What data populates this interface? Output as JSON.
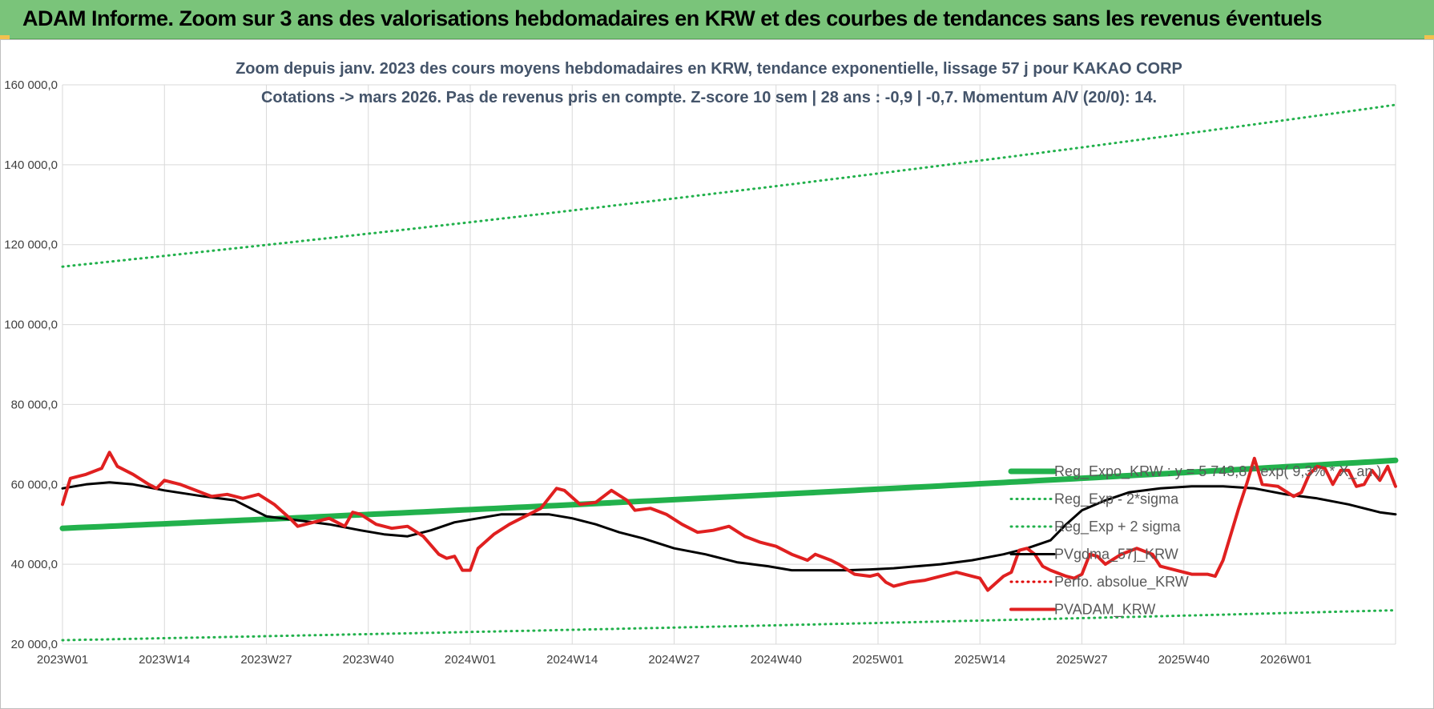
{
  "banner": {
    "title": "ADAM Informe. Zoom sur 3 ans des valorisations hebdomadaires en KRW et des courbes de tendances sans les revenus éventuels"
  },
  "chart_data": {
    "type": "line",
    "title_line1": "Zoom depuis janv. 2023 des cours moyens hebdomadaires en KRW, tendance exponentielle, lissage 57 j pour KAKAO CORP",
    "title_line2": "Cotations -> mars 2026. Pas de revenus pris en compte. Z-score 10 sem | 28 ans : -0,9 | -0,7. Momentum A/V (20/0): 14.",
    "ylim": [
      20000,
      160000
    ],
    "y_ticks": [
      {
        "value": 20000,
        "label": "20 000,0"
      },
      {
        "value": 40000,
        "label": "40 000,0"
      },
      {
        "value": 60000,
        "label": "60 000,0"
      },
      {
        "value": 80000,
        "label": "80 000,0"
      },
      {
        "value": 100000,
        "label": "100 000,0"
      },
      {
        "value": 120000,
        "label": "120 000,0"
      },
      {
        "value": 140000,
        "label": "140 000,0"
      },
      {
        "value": 160000,
        "label": "160 000,0"
      }
    ],
    "x_ticks": [
      {
        "index": 0,
        "label": "2023W01"
      },
      {
        "index": 13,
        "label": "2023W14"
      },
      {
        "index": 26,
        "label": "2023W27"
      },
      {
        "index": 39,
        "label": "2023W40"
      },
      {
        "index": 52,
        "label": "2024W01"
      },
      {
        "index": 65,
        "label": "2024W14"
      },
      {
        "index": 78,
        "label": "2024W27"
      },
      {
        "index": 91,
        "label": "2024W40"
      },
      {
        "index": 104,
        "label": "2025W01"
      },
      {
        "index": 117,
        "label": "2025W14"
      },
      {
        "index": 130,
        "label": "2025W27"
      },
      {
        "index": 143,
        "label": "2025W40"
      },
      {
        "index": 156,
        "label": "2026W01"
      }
    ],
    "x_count": 171,
    "grid": true,
    "legend_position": "bottom-right",
    "series": [
      {
        "name": "Reg_Expo_KRW : y = 5 743,8 * exp( 9,3% *  X_an )",
        "kind": "trend",
        "color": "#22b14c",
        "style": "solid",
        "width": 7,
        "endpoints": [
          [
            0,
            49000
          ],
          [
            170,
            66000
          ]
        ]
      },
      {
        "name": "Reg_Exp - 2*sigma",
        "kind": "trend",
        "color": "#22b14c",
        "style": "dotted",
        "width": 3,
        "endpoints": [
          [
            0,
            21000
          ],
          [
            170,
            28500
          ]
        ]
      },
      {
        "name": "Reg_Exp + 2 sigma",
        "kind": "trend",
        "color": "#22b14c",
        "style": "dotted",
        "width": 3,
        "endpoints": [
          [
            0,
            114500
          ],
          [
            170,
            155000
          ]
        ]
      },
      {
        "name": "PVgdma_57j_KRW",
        "kind": "line",
        "color": "#000000",
        "style": "solid",
        "width": 3,
        "points": [
          [
            0,
            59000
          ],
          [
            3,
            60000
          ],
          [
            6,
            60500
          ],
          [
            9,
            60000
          ],
          [
            13,
            58500
          ],
          [
            18,
            57000
          ],
          [
            22,
            56000
          ],
          [
            26,
            52000
          ],
          [
            30,
            51000
          ],
          [
            34,
            50000
          ],
          [
            38,
            48500
          ],
          [
            41,
            47500
          ],
          [
            44,
            47000
          ],
          [
            47,
            48500
          ],
          [
            50,
            50500
          ],
          [
            53,
            51500
          ],
          [
            56,
            52500
          ],
          [
            59,
            52500
          ],
          [
            62,
            52500
          ],
          [
            65,
            51500
          ],
          [
            68,
            50000
          ],
          [
            71,
            48000
          ],
          [
            74,
            46500
          ],
          [
            78,
            44000
          ],
          [
            82,
            42500
          ],
          [
            86,
            40500
          ],
          [
            90,
            39500
          ],
          [
            93,
            38500
          ],
          [
            97,
            38500
          ],
          [
            100,
            38500
          ],
          [
            103,
            38700
          ],
          [
            106,
            39000
          ],
          [
            109,
            39500
          ],
          [
            112,
            40000
          ],
          [
            116,
            41000
          ],
          [
            120,
            42500
          ],
          [
            123,
            44000
          ],
          [
            126,
            46000
          ],
          [
            128,
            50000
          ],
          [
            130,
            53500
          ],
          [
            133,
            56000
          ],
          [
            136,
            58000
          ],
          [
            140,
            59000
          ],
          [
            144,
            59500
          ],
          [
            148,
            59500
          ],
          [
            152,
            59000
          ],
          [
            156,
            57500
          ],
          [
            160,
            56500
          ],
          [
            164,
            55000
          ],
          [
            168,
            53000
          ],
          [
            170,
            52500
          ]
        ]
      },
      {
        "name": "Perfo. absolue_KRW",
        "kind": "legend-only",
        "color": "#e00000",
        "style": "dotted",
        "width": 3
      },
      {
        "name": "PVADAM_KRW",
        "kind": "line",
        "color": "#e02020",
        "style": "solid",
        "width": 4,
        "points": [
          [
            0,
            55000
          ],
          [
            1,
            61500
          ],
          [
            3,
            62500
          ],
          [
            5,
            64000
          ],
          [
            6,
            68000
          ],
          [
            7,
            64500
          ],
          [
            9,
            62500
          ],
          [
            11,
            60000
          ],
          [
            12,
            59000
          ],
          [
            13,
            61000
          ],
          [
            15,
            60000
          ],
          [
            17,
            58500
          ],
          [
            19,
            57000
          ],
          [
            21,
            57500
          ],
          [
            23,
            56500
          ],
          [
            25,
            57500
          ],
          [
            27,
            55000
          ],
          [
            29,
            51500
          ],
          [
            30,
            49500
          ],
          [
            32,
            50500
          ],
          [
            34,
            51500
          ],
          [
            36,
            49500
          ],
          [
            37,
            53000
          ],
          [
            38,
            52500
          ],
          [
            40,
            50000
          ],
          [
            42,
            49000
          ],
          [
            44,
            49500
          ],
          [
            46,
            47000
          ],
          [
            48,
            42500
          ],
          [
            49,
            41500
          ],
          [
            50,
            42000
          ],
          [
            51,
            38500
          ],
          [
            52,
            38500
          ],
          [
            53,
            44000
          ],
          [
            55,
            47500
          ],
          [
            57,
            50000
          ],
          [
            59,
            52000
          ],
          [
            61,
            54000
          ],
          [
            63,
            59000
          ],
          [
            64,
            58500
          ],
          [
            66,
            55000
          ],
          [
            68,
            55500
          ],
          [
            70,
            58500
          ],
          [
            72,
            56000
          ],
          [
            73,
            53500
          ],
          [
            75,
            54000
          ],
          [
            77,
            52500
          ],
          [
            79,
            50000
          ],
          [
            81,
            48000
          ],
          [
            83,
            48500
          ],
          [
            85,
            49500
          ],
          [
            87,
            47000
          ],
          [
            89,
            45500
          ],
          [
            91,
            44500
          ],
          [
            93,
            42500
          ],
          [
            95,
            41000
          ],
          [
            96,
            42500
          ],
          [
            98,
            41000
          ],
          [
            99,
            40000
          ],
          [
            101,
            37500
          ],
          [
            103,
            37000
          ],
          [
            104,
            37500
          ],
          [
            105,
            35500
          ],
          [
            106,
            34500
          ],
          [
            108,
            35500
          ],
          [
            110,
            36000
          ],
          [
            112,
            37000
          ],
          [
            114,
            38000
          ],
          [
            116,
            37000
          ],
          [
            117,
            36500
          ],
          [
            118,
            33500
          ],
          [
            120,
            37000
          ],
          [
            121,
            38000
          ],
          [
            122,
            43500
          ],
          [
            123,
            44000
          ],
          [
            124,
            42500
          ],
          [
            125,
            39500
          ],
          [
            126,
            38500
          ],
          [
            128,
            37000
          ],
          [
            129,
            36500
          ],
          [
            130,
            37500
          ],
          [
            131,
            42500
          ],
          [
            132,
            42000
          ],
          [
            133,
            40000
          ],
          [
            135,
            42500
          ],
          [
            137,
            44000
          ],
          [
            139,
            42500
          ],
          [
            140,
            39500
          ],
          [
            142,
            38500
          ],
          [
            144,
            37500
          ],
          [
            146,
            37500
          ],
          [
            147,
            37000
          ],
          [
            148,
            41000
          ],
          [
            150,
            54000
          ],
          [
            151,
            60000
          ],
          [
            152,
            66500
          ],
          [
            153,
            60000
          ],
          [
            155,
            59500
          ],
          [
            157,
            57000
          ],
          [
            158,
            58000
          ],
          [
            159,
            62500
          ],
          [
            160,
            64500
          ],
          [
            161,
            64000
          ],
          [
            162,
            60000
          ],
          [
            163,
            63500
          ],
          [
            164,
            63500
          ],
          [
            165,
            59500
          ],
          [
            166,
            60000
          ],
          [
            167,
            63500
          ],
          [
            168,
            61000
          ],
          [
            169,
            64500
          ],
          [
            170,
            59500
          ]
        ]
      }
    ]
  }
}
